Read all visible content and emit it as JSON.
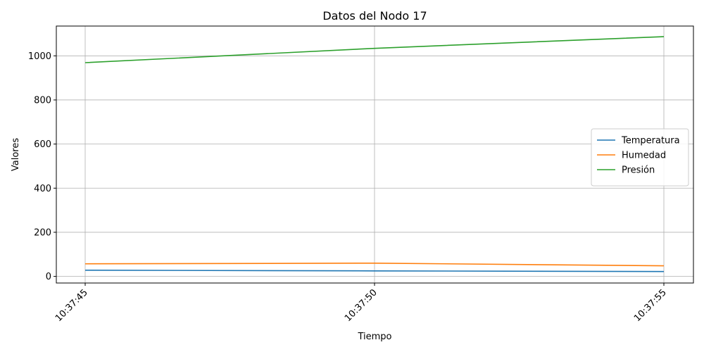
{
  "chart_data": {
    "type": "line",
    "title": "Datos del Nodo 17",
    "xlabel": "Tiempo",
    "ylabel": "Valores",
    "x": [
      "10:37:45",
      "10:37:50",
      "10:37:55"
    ],
    "ylim": [
      -30,
      1135
    ],
    "yticks": [
      0,
      200,
      400,
      600,
      800,
      1000
    ],
    "grid": true,
    "legend_position": "center-right",
    "series": [
      {
        "name": "Temperatura",
        "color": "#1f77b4",
        "values": [
          28,
          25,
          22
        ]
      },
      {
        "name": "Humedad",
        "color": "#ff7f0e",
        "values": [
          57,
          60,
          48
        ]
      },
      {
        "name": "Presión",
        "color": "#2ca02c",
        "values": [
          969,
          1034,
          1087
        ]
      }
    ]
  }
}
